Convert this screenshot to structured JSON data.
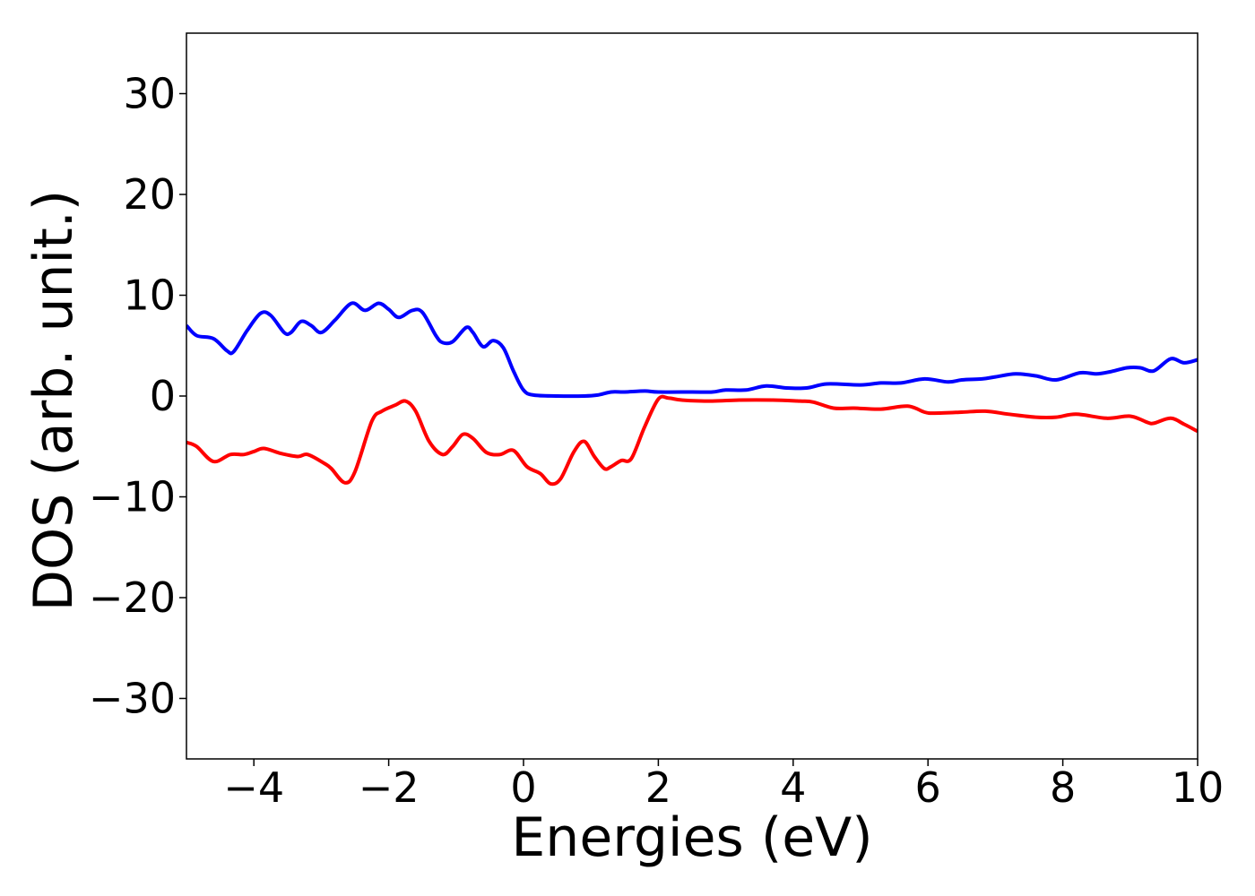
{
  "chart_data": {
    "type": "line",
    "title": "",
    "xlabel": "Energies (eV)",
    "ylabel": "DOS (arb. unit.)",
    "xlim": [
      -5,
      10
    ],
    "ylim": [
      -36,
      36
    ],
    "xticks": [
      -4,
      -2,
      0,
      2,
      4,
      6,
      8,
      10
    ],
    "xtick_labels": [
      "−4",
      "−2",
      "0",
      "2",
      "4",
      "6",
      "8",
      "10"
    ],
    "yticks": [
      30,
      20,
      10,
      0,
      -10,
      -20,
      -30
    ],
    "ytick_labels": [
      "30",
      "20",
      "10",
      "0",
      "−10",
      "−20",
      "−30"
    ],
    "grid": false,
    "legend": "none",
    "series": [
      {
        "color": "#0000ff",
        "points": [
          [
            -5.0,
            7.0
          ],
          [
            -4.85,
            6.0
          ],
          [
            -4.6,
            5.7
          ],
          [
            -4.4,
            4.5
          ],
          [
            -4.3,
            4.4
          ],
          [
            -4.1,
            6.5
          ],
          [
            -3.9,
            8.2
          ],
          [
            -3.75,
            8.0
          ],
          [
            -3.55,
            6.3
          ],
          [
            -3.45,
            6.3
          ],
          [
            -3.3,
            7.4
          ],
          [
            -3.15,
            7.0
          ],
          [
            -3.0,
            6.3
          ],
          [
            -2.8,
            7.5
          ],
          [
            -2.55,
            9.2
          ],
          [
            -2.35,
            8.5
          ],
          [
            -2.15,
            9.2
          ],
          [
            -2.0,
            8.6
          ],
          [
            -1.85,
            7.8
          ],
          [
            -1.65,
            8.5
          ],
          [
            -1.5,
            8.3
          ],
          [
            -1.3,
            6.0
          ],
          [
            -1.2,
            5.3
          ],
          [
            -1.05,
            5.4
          ],
          [
            -0.85,
            6.8
          ],
          [
            -0.75,
            6.3
          ],
          [
            -0.6,
            4.9
          ],
          [
            -0.45,
            5.5
          ],
          [
            -0.3,
            4.8
          ],
          [
            -0.15,
            2.5
          ],
          [
            0.0,
            0.6
          ],
          [
            0.15,
            0.1
          ],
          [
            0.5,
            0.0
          ],
          [
            0.9,
            0.0
          ],
          [
            1.1,
            0.1
          ],
          [
            1.3,
            0.4
          ],
          [
            1.5,
            0.4
          ],
          [
            1.8,
            0.5
          ],
          [
            2.0,
            0.4
          ],
          [
            2.5,
            0.4
          ],
          [
            2.8,
            0.4
          ],
          [
            3.0,
            0.6
          ],
          [
            3.3,
            0.6
          ],
          [
            3.6,
            1.0
          ],
          [
            3.9,
            0.8
          ],
          [
            4.2,
            0.8
          ],
          [
            4.5,
            1.2
          ],
          [
            5.0,
            1.1
          ],
          [
            5.3,
            1.3
          ],
          [
            5.6,
            1.3
          ],
          [
            5.95,
            1.7
          ],
          [
            6.3,
            1.4
          ],
          [
            6.5,
            1.6
          ],
          [
            6.8,
            1.7
          ],
          [
            7.0,
            1.9
          ],
          [
            7.3,
            2.2
          ],
          [
            7.6,
            2.0
          ],
          [
            7.9,
            1.6
          ],
          [
            8.25,
            2.3
          ],
          [
            8.5,
            2.2
          ],
          [
            8.7,
            2.4
          ],
          [
            8.95,
            2.8
          ],
          [
            9.15,
            2.8
          ],
          [
            9.35,
            2.5
          ],
          [
            9.6,
            3.7
          ],
          [
            9.8,
            3.3
          ],
          [
            10.0,
            3.6
          ]
        ]
      },
      {
        "color": "#ff0000",
        "points": [
          [
            -5.0,
            -4.6
          ],
          [
            -4.85,
            -5.0
          ],
          [
            -4.6,
            -6.5
          ],
          [
            -4.35,
            -5.8
          ],
          [
            -4.15,
            -5.8
          ],
          [
            -4.0,
            -5.5
          ],
          [
            -3.85,
            -5.2
          ],
          [
            -3.6,
            -5.7
          ],
          [
            -3.35,
            -6.0
          ],
          [
            -3.2,
            -5.8
          ],
          [
            -2.95,
            -6.7
          ],
          [
            -2.85,
            -7.2
          ],
          [
            -2.65,
            -8.6
          ],
          [
            -2.5,
            -7.5
          ],
          [
            -2.25,
            -2.5
          ],
          [
            -2.1,
            -1.5
          ],
          [
            -1.9,
            -0.9
          ],
          [
            -1.75,
            -0.5
          ],
          [
            -1.6,
            -1.5
          ],
          [
            -1.4,
            -4.5
          ],
          [
            -1.2,
            -5.8
          ],
          [
            -1.05,
            -5.0
          ],
          [
            -0.9,
            -3.8
          ],
          [
            -0.75,
            -4.2
          ],
          [
            -0.55,
            -5.6
          ],
          [
            -0.35,
            -5.8
          ],
          [
            -0.15,
            -5.4
          ],
          [
            0.05,
            -7.0
          ],
          [
            0.25,
            -7.7
          ],
          [
            0.4,
            -8.7
          ],
          [
            0.55,
            -8.2
          ],
          [
            0.75,
            -5.5
          ],
          [
            0.9,
            -4.5
          ],
          [
            1.05,
            -6.0
          ],
          [
            1.2,
            -7.2
          ],
          [
            1.3,
            -7.0
          ],
          [
            1.45,
            -6.4
          ],
          [
            1.6,
            -6.2
          ],
          [
            1.8,
            -3.0
          ],
          [
            2.0,
            -0.3
          ],
          [
            2.15,
            -0.2
          ],
          [
            2.35,
            -0.4
          ],
          [
            2.8,
            -0.5
          ],
          [
            3.2,
            -0.4
          ],
          [
            3.7,
            -0.4
          ],
          [
            4.1,
            -0.5
          ],
          [
            4.3,
            -0.6
          ],
          [
            4.6,
            -1.2
          ],
          [
            4.9,
            -1.2
          ],
          [
            5.3,
            -1.3
          ],
          [
            5.7,
            -1.0
          ],
          [
            5.95,
            -1.6
          ],
          [
            6.1,
            -1.7
          ],
          [
            6.5,
            -1.6
          ],
          [
            6.85,
            -1.5
          ],
          [
            7.2,
            -1.8
          ],
          [
            7.6,
            -2.1
          ],
          [
            7.9,
            -2.1
          ],
          [
            8.2,
            -1.8
          ],
          [
            8.65,
            -2.2
          ],
          [
            9.0,
            -2.0
          ],
          [
            9.25,
            -2.6
          ],
          [
            9.35,
            -2.7
          ],
          [
            9.6,
            -2.2
          ],
          [
            9.8,
            -2.8
          ],
          [
            10.0,
            -3.5
          ]
        ]
      }
    ]
  }
}
